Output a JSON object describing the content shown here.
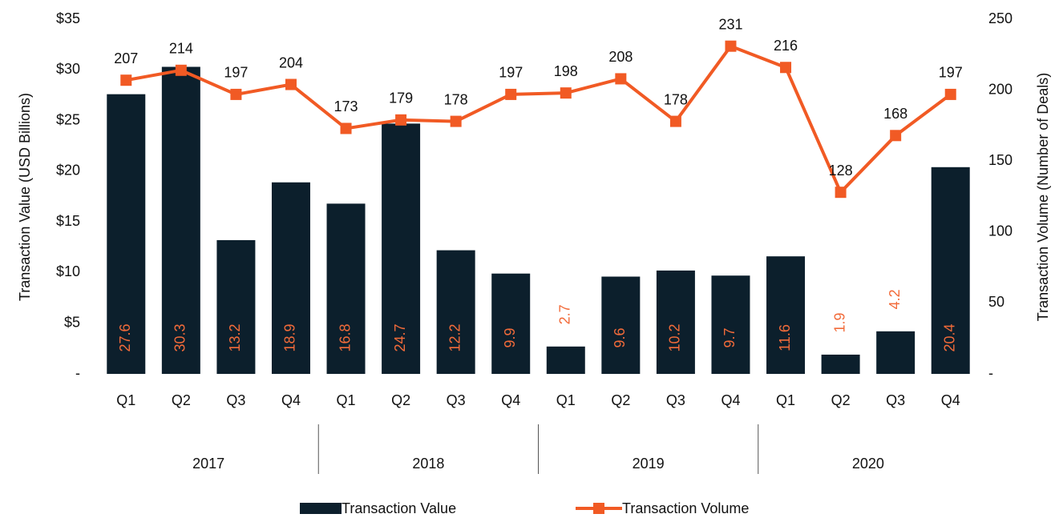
{
  "chart_data": {
    "type": "bar-line",
    "categories": [
      "Q1",
      "Q2",
      "Q3",
      "Q4",
      "Q1",
      "Q2",
      "Q3",
      "Q4",
      "Q1",
      "Q2",
      "Q3",
      "Q4",
      "Q1",
      "Q2",
      "Q3",
      "Q4"
    ],
    "groups": [
      "2017",
      "2018",
      "2019",
      "2020"
    ],
    "y_label": "Transaction Value (USD Billions)",
    "y2_label": "Transaction Volume (Number of Deals)",
    "ylim": [
      0,
      35
    ],
    "yticks": [
      {
        "value": 0,
        "label": "-"
      },
      {
        "value": 5,
        "label": "$5"
      },
      {
        "value": 10,
        "label": "$10"
      },
      {
        "value": 15,
        "label": "$15"
      },
      {
        "value": 20,
        "label": "$20"
      },
      {
        "value": 25,
        "label": "$25"
      },
      {
        "value": 30,
        "label": "$30"
      },
      {
        "value": 35,
        "label": "$35"
      }
    ],
    "y2lim": [
      0,
      250
    ],
    "y2ticks": [
      {
        "value": 0,
        "label": "-"
      },
      50,
      100,
      150,
      200,
      250
    ],
    "series": [
      {
        "name": "Transaction Value",
        "type": "bar",
        "color": "#0c1f2c",
        "label_color": "#f26b3a",
        "values": [
          27.6,
          30.3,
          13.2,
          18.9,
          16.8,
          24.7,
          12.2,
          9.9,
          2.7,
          9.6,
          10.2,
          9.7,
          11.6,
          1.9,
          4.2,
          20.4
        ]
      },
      {
        "name": "Transaction Volume",
        "type": "line",
        "axis": "y2",
        "color": "#f15a24",
        "values": [
          207,
          214,
          197,
          204,
          173,
          179,
          178,
          197,
          198,
          208,
          178,
          231,
          216,
          128,
          168,
          197
        ]
      }
    ]
  }
}
